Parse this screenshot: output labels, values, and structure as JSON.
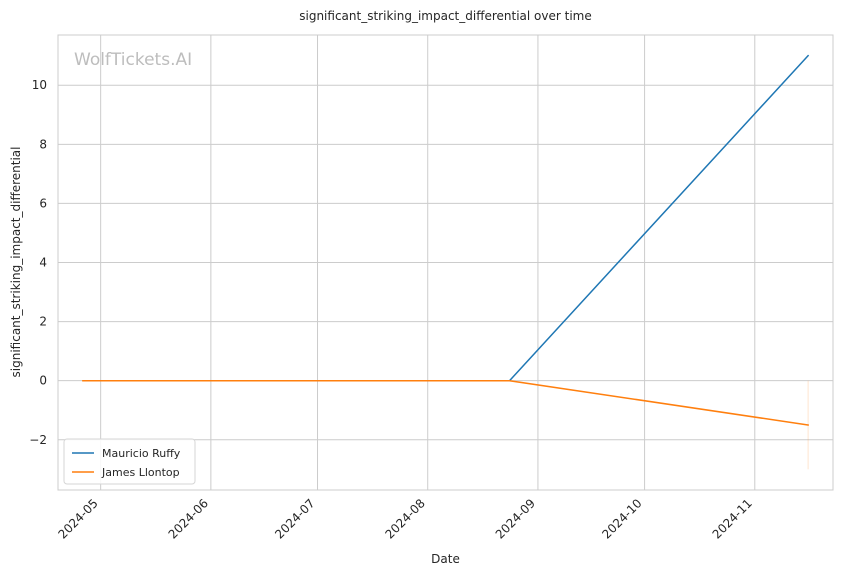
{
  "chart_data": {
    "type": "line",
    "title": "significant_striking_impact_differential over time",
    "xlabel": "Date",
    "ylabel": "significant_striking_impact_differential",
    "watermark": "WolfTickets.AI",
    "xlim": [
      "2024-04-19",
      "2024-11-23"
    ],
    "ylim": [
      -3.7,
      11.7
    ],
    "x_ticks": [
      "2024-05-01",
      "2024-06-01",
      "2024-07-01",
      "2024-08-01",
      "2024-09-01",
      "2024-10-01",
      "2024-11-01"
    ],
    "x_tick_labels": [
      "2024-05",
      "2024-06",
      "2024-07",
      "2024-08",
      "2024-09",
      "2024-10",
      "2024-11"
    ],
    "y_ticks": [
      -2,
      0,
      2,
      4,
      6,
      8,
      10
    ],
    "y_tick_labels": [
      "−2",
      "0",
      "2",
      "4",
      "6",
      "8",
      "10"
    ],
    "grid": true,
    "legend_position": "lower-left",
    "series": [
      {
        "name": "Mauricio Ruffy",
        "color": "#1f77b4",
        "x": [
          "2024-05-03",
          "2024-08-24",
          "2024-11-16"
        ],
        "y": [
          0,
          0,
          11
        ]
      },
      {
        "name": "James Llontop",
        "color": "#ff7f0e",
        "x": [
          "2024-04-26",
          "2024-08-24",
          "2024-11-16"
        ],
        "y": [
          0,
          0,
          -1.5
        ]
      }
    ]
  }
}
